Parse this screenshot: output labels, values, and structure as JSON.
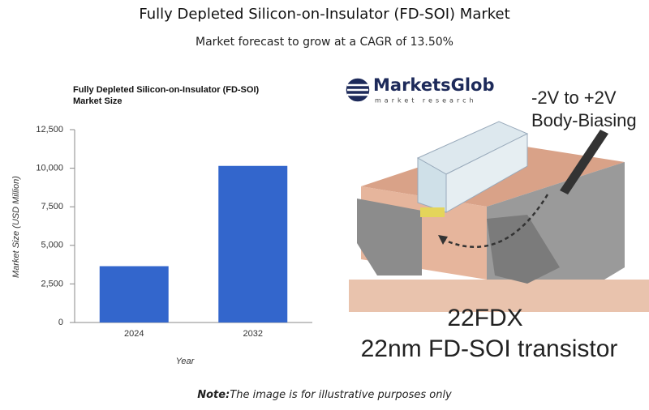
{
  "header": {
    "title": "Fully Depleted Silicon-on-Insulator (FD-SOI) Market",
    "subtitle": "Market forecast to grow at a CAGR of 13.50%"
  },
  "chart_data": {
    "type": "bar",
    "title": "Fully Depleted Silicon-on-Insulator (FD-SOI) Market Size",
    "categories": [
      "2024",
      "2032"
    ],
    "values": [
      3650,
      10150
    ],
    "color": "#3366cc",
    "xlabel": "Year",
    "ylabel": "Market Size (USD Million)",
    "ylim": [
      0,
      12500
    ],
    "yticks": [
      0,
      {
        "value": 2500,
        "label": "2,500"
      },
      {
        "value": 5000,
        "label": "5,000"
      },
      {
        "value": 7500,
        "label": "7,500"
      },
      {
        "value": 10000,
        "label": "10,000"
      },
      {
        "value": 12500,
        "label": "12,500"
      }
    ],
    "grid": false
  },
  "image": {
    "logo": "MarketsGlob",
    "logo_tagline": "market research",
    "voltage": "-2V to +2V",
    "biasing": "Body-Biasing",
    "product": "22FDX",
    "caption": "22nm FD-SOI transistor"
  },
  "note": {
    "label": "Note:",
    "text": "The image is for illustrative purposes only"
  }
}
